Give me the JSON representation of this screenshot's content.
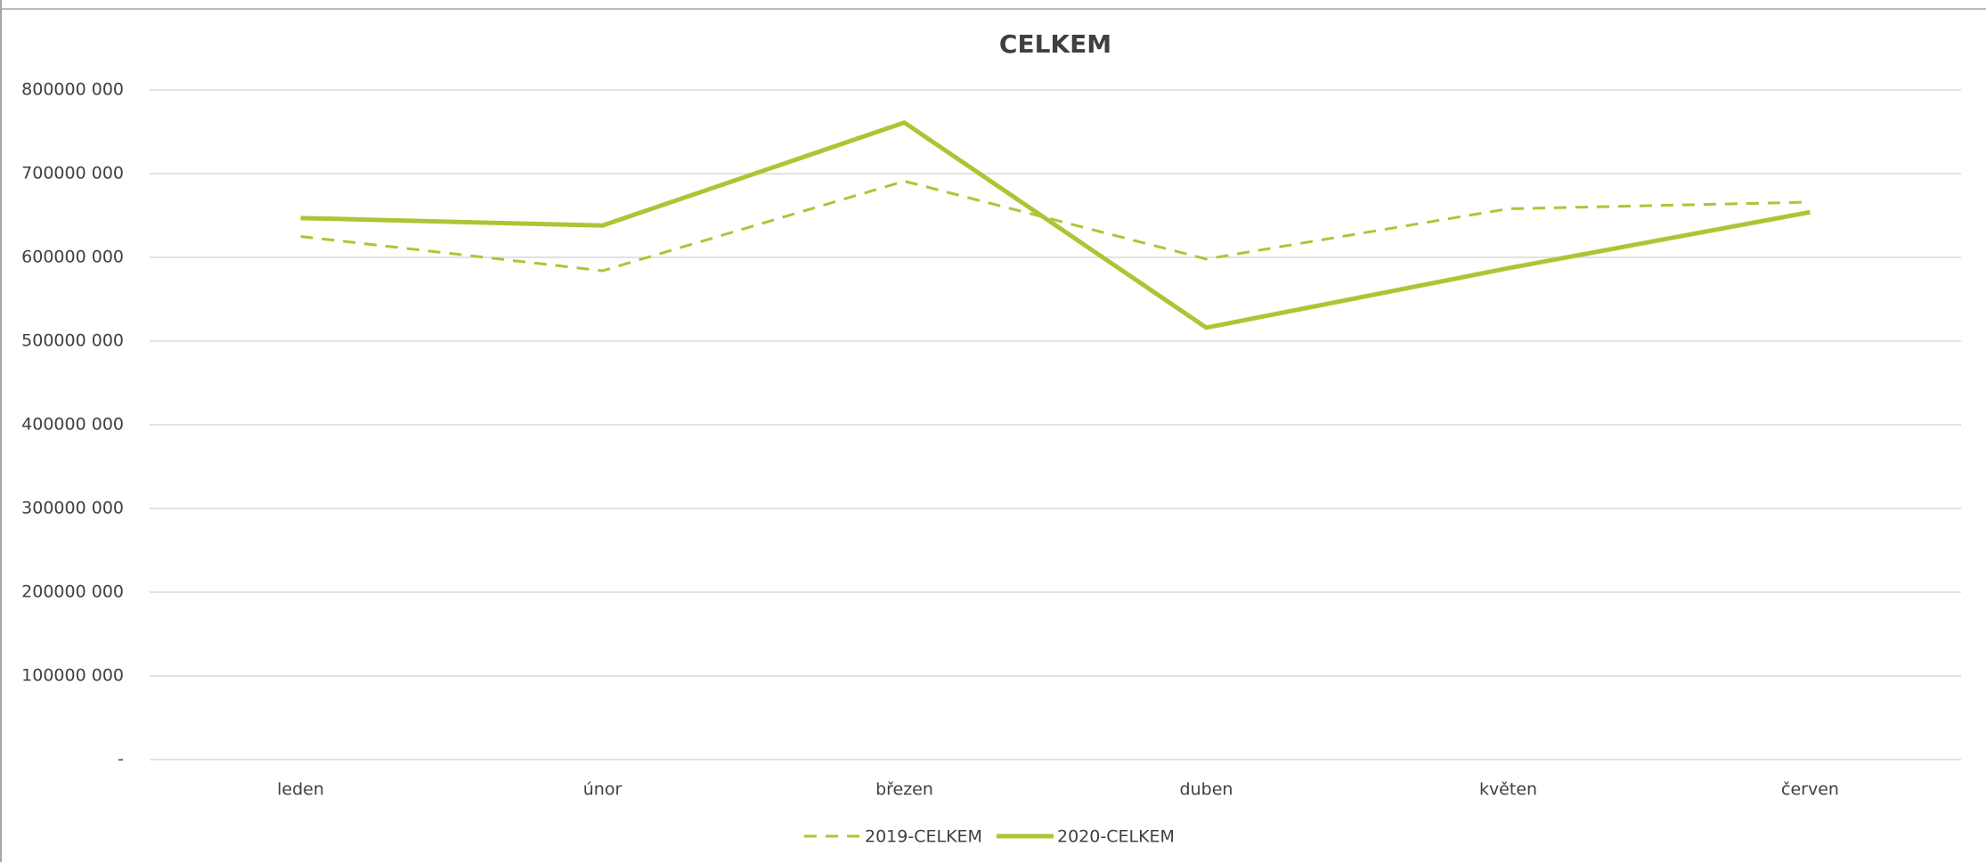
{
  "chart_data": {
    "type": "line",
    "title": "CELKEM",
    "categories": [
      "leden",
      "únor",
      "březen",
      "duben",
      "květen",
      "červen"
    ],
    "series": [
      {
        "name": "2019-CELKEM",
        "color": "#a9c734",
        "line_style": "dashed",
        "values": [
          625000000,
          584000000,
          691000000,
          598000000,
          658000000,
          666000000
        ]
      },
      {
        "name": "2020-CELKEM",
        "color": "#a9c734",
        "line_style": "solid",
        "values": [
          647000000,
          638000000,
          761000000,
          516000000,
          587000000,
          654000000
        ]
      }
    ],
    "ylim": [
      0,
      800000000
    ],
    "yticks": [
      {
        "value": 0,
        "label": "-"
      },
      {
        "value": 100000000,
        "label": "100000 000"
      },
      {
        "value": 200000000,
        "label": "200000 000"
      },
      {
        "value": 300000000,
        "label": "300000 000"
      },
      {
        "value": 400000000,
        "label": "400000 000"
      },
      {
        "value": 500000000,
        "label": "500000 000"
      },
      {
        "value": 600000000,
        "label": "600000 000"
      },
      {
        "value": 700000000,
        "label": "700000 000"
      },
      {
        "value": 800000000,
        "label": "800000 000"
      }
    ],
    "grid": true,
    "legend": "bottom"
  }
}
